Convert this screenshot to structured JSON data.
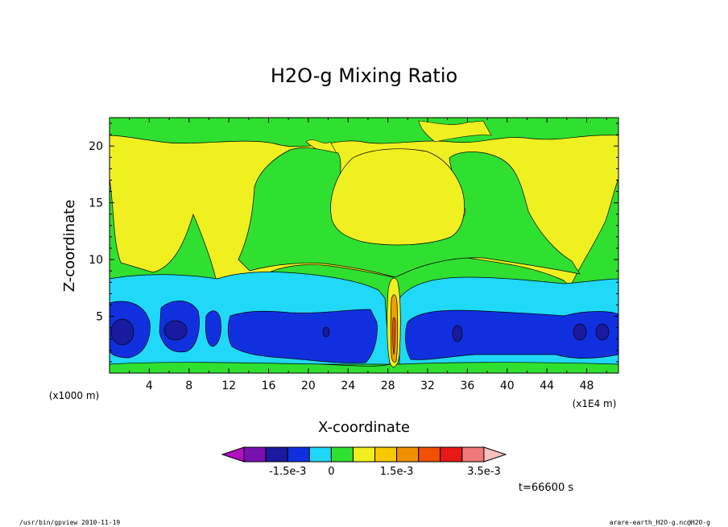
{
  "chart_data": {
    "type": "heatmap",
    "title": "H2O-g Mixing Ratio",
    "xlabel": "X-coordinate",
    "ylabel": "Z-coordinate",
    "x_unit_left": "(x1000 m)",
    "x_unit_right": "(x1E4 m)",
    "x_ticks": [
      4,
      8,
      12,
      16,
      20,
      24,
      28,
      32,
      36,
      40,
      44,
      48
    ],
    "y_ticks": [
      5,
      10,
      15,
      20
    ],
    "xlim": [
      0,
      51.2
    ],
    "ylim": [
      0,
      22.5
    ],
    "time_label": "t=66600 s",
    "colorbar": {
      "colors": [
        "#b010c0",
        "#7a10b0",
        "#1a1aa0",
        "#1030e0",
        "#20d8f8",
        "#30e030",
        "#f0f020",
        "#f8c800",
        "#f09000",
        "#f05000",
        "#e81818",
        "#f07878",
        "#f8c0c0"
      ],
      "tick_labels": [
        "-1.5e-3",
        "0",
        "1.5e-3",
        "3.5e-3"
      ]
    },
    "field_bands": [
      {
        "level": "dark-blue",
        "color": "#1a1aa0",
        "region": "low pockets"
      },
      {
        "level": "blue",
        "color": "#1030e0",
        "region": "z 2-6"
      },
      {
        "level": "cyan",
        "color": "#20d8f8",
        "region": "z 1-8.5"
      },
      {
        "level": "green",
        "color": "#30e030",
        "region": "base and plumes"
      },
      {
        "level": "yellow",
        "color": "#f0f020",
        "region": "upper layer"
      },
      {
        "level": "orange",
        "color": "#f0a000",
        "region": "x~28 column"
      }
    ]
  },
  "footer": {
    "left": "/usr/bin/gpview  2010-11-19",
    "right": "arare-earth_H2O-g.nc@H2O-g"
  }
}
